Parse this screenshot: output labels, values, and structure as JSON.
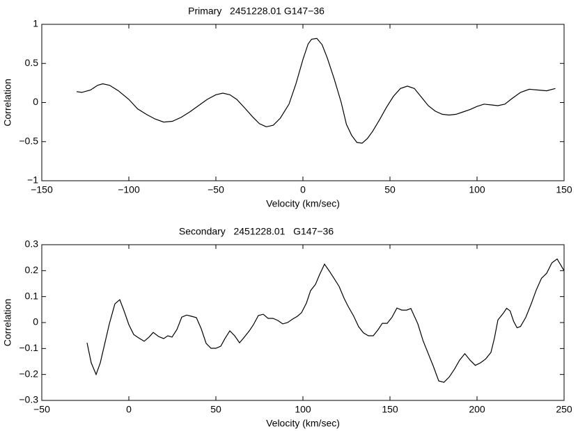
{
  "chart_data": [
    {
      "type": "line",
      "title": "Primary   2451228.01 G147−36",
      "x_label": "Velocity (km/sec)",
      "y_label": "Correlation",
      "color": "#000000",
      "x": [
        -130,
        -127,
        -122,
        -118,
        -115,
        -111,
        -106,
        -100,
        -95,
        -90,
        -85,
        -80,
        -75,
        -70,
        -65,
        -60,
        -55,
        -50,
        -46,
        -42,
        -38,
        -33,
        -29,
        -25,
        -21,
        -17,
        -13,
        -8,
        -4,
        0,
        3,
        5,
        8,
        11,
        14,
        18,
        22,
        25,
        28,
        31,
        34,
        37,
        40,
        44,
        48,
        52,
        56,
        60,
        64,
        68,
        72,
        76,
        80,
        84,
        88,
        92,
        96,
        100,
        104,
        108,
        112,
        116,
        120,
        125,
        130,
        135,
        140,
        145
      ],
      "values": [
        0.14,
        0.13,
        0.16,
        0.22,
        0.24,
        0.22,
        0.15,
        0.04,
        -0.08,
        -0.15,
        -0.21,
        -0.25,
        -0.24,
        -0.19,
        -0.12,
        -0.04,
        0.04,
        0.1,
        0.12,
        0.1,
        0.04,
        -0.08,
        -0.18,
        -0.27,
        -0.31,
        -0.29,
        -0.2,
        -0.02,
        0.24,
        0.55,
        0.75,
        0.81,
        0.82,
        0.74,
        0.57,
        0.3,
        0.0,
        -0.28,
        -0.42,
        -0.51,
        -0.52,
        -0.46,
        -0.37,
        -0.22,
        -0.06,
        0.08,
        0.18,
        0.21,
        0.18,
        0.07,
        -0.04,
        -0.11,
        -0.15,
        -0.16,
        -0.15,
        -0.12,
        -0.09,
        -0.05,
        -0.02,
        -0.03,
        -0.04,
        -0.02,
        0.05,
        0.13,
        0.17,
        0.16,
        0.15,
        0.18
      ],
      "xlim": [
        -150,
        150
      ],
      "ylim": [
        -1,
        1
      ],
      "xticks": [
        {
          "value": -150,
          "label": "−150"
        },
        {
          "value": -100,
          "label": "−100"
        },
        {
          "value": -50,
          "label": "−50"
        },
        0,
        50,
        100,
        150
      ],
      "yticks": [
        {
          "value": -1,
          "label": "−1"
        },
        {
          "value": -0.5,
          "label": "−0.5"
        },
        0,
        0.5,
        1
      ]
    },
    {
      "type": "line",
      "title": "Secondary   2451228.01   G147−36",
      "x_label": "Velocity (km/sec)",
      "y_label": "Correlation",
      "color": "#000000",
      "x": [
        -24,
        -21.6,
        -18.8,
        -16.4,
        -14,
        -11.2,
        -8,
        -5.2,
        -2.8,
        0,
        2.8,
        5.6,
        8.8,
        11.6,
        14,
        17.2,
        20,
        22.4,
        24.8,
        27.6,
        30.4,
        33.2,
        36,
        38.8,
        41.6,
        44.4,
        47.2,
        50,
        52.8,
        55.2,
        58,
        60.8,
        63.6,
        66,
        69.2,
        71.6,
        74.4,
        77.2,
        80,
        82.8,
        85.6,
        88.4,
        91.2,
        94,
        96.8,
        99.2,
        102,
        104.4,
        107.2,
        109.6,
        112.4,
        115.2,
        118,
        120.8,
        123.6,
        126,
        129.2,
        132,
        134.8,
        137.6,
        140.4,
        143.2,
        145.6,
        148.4,
        151.2,
        154,
        156.8,
        159.6,
        162,
        166,
        169,
        172,
        175,
        178,
        181,
        184,
        187,
        190,
        193,
        196,
        199,
        202,
        205,
        208,
        210,
        212,
        215,
        217,
        219,
        221,
        223,
        225,
        228,
        231,
        234,
        237,
        240,
        243,
        246,
        250
      ],
      "values": [
        -0.078,
        -0.155,
        -0.2,
        -0.155,
        -0.086,
        -0.005,
        0.072,
        0.088,
        0.046,
        -0.008,
        -0.046,
        -0.059,
        -0.072,
        -0.056,
        -0.038,
        -0.054,
        -0.062,
        -0.051,
        -0.056,
        -0.027,
        0.021,
        0.029,
        0.024,
        0.019,
        -0.024,
        -0.08,
        -0.099,
        -0.099,
        -0.091,
        -0.062,
        -0.032,
        -0.051,
        -0.078,
        -0.059,
        -0.032,
        -0.008,
        0.027,
        0.032,
        0.016,
        0.016,
        0.008,
        -0.005,
        0.0,
        0.013,
        0.024,
        0.038,
        0.075,
        0.123,
        0.147,
        0.185,
        0.225,
        0.198,
        0.169,
        0.139,
        0.094,
        0.062,
        0.024,
        -0.016,
        -0.04,
        -0.051,
        -0.051,
        -0.027,
        -0.003,
        -0.003,
        0.021,
        0.056,
        0.048,
        0.048,
        0.054,
        -0.005,
        -0.07,
        -0.12,
        -0.17,
        -0.225,
        -0.23,
        -0.21,
        -0.18,
        -0.145,
        -0.12,
        -0.145,
        -0.165,
        -0.155,
        -0.14,
        -0.115,
        -0.06,
        0.01,
        0.035,
        0.055,
        0.045,
        0.005,
        -0.02,
        -0.015,
        0.02,
        0.07,
        0.125,
        0.17,
        0.19,
        0.23,
        0.245,
        0.2
      ],
      "xlim": [
        -50,
        250
      ],
      "ylim": [
        -0.3,
        0.3
      ],
      "xticks": [
        {
          "value": -50,
          "label": "−50"
        },
        0,
        50,
        100,
        150,
        200,
        250
      ],
      "yticks": [
        {
          "value": -0.3,
          "label": "−0.3"
        },
        {
          "value": -0.2,
          "label": "−0.2"
        },
        {
          "value": -0.1,
          "label": "−0.1"
        },
        0,
        0.1,
        0.2,
        0.3
      ]
    }
  ]
}
